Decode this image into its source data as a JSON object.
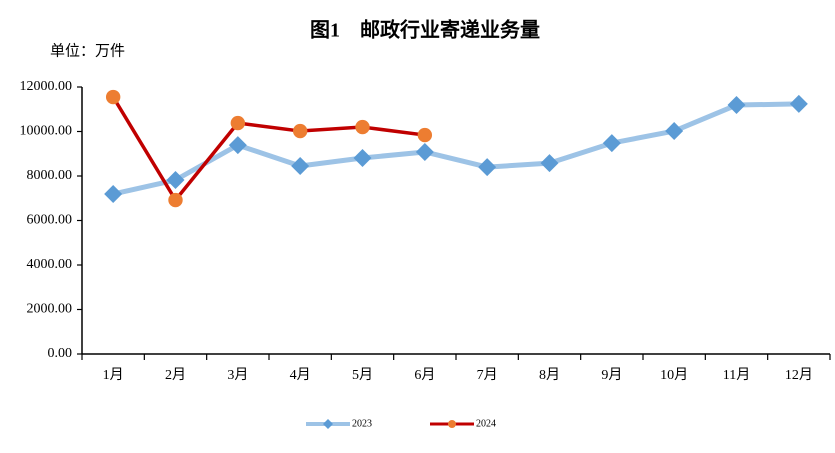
{
  "chart_data": {
    "type": "line",
    "title": "图1　邮政行业寄递业务量",
    "unit": "单位：万件",
    "categories": [
      "1月",
      "2月",
      "3月",
      "4月",
      "5月",
      "6月",
      "7月",
      "8月",
      "9月",
      "10月",
      "11月",
      "12月"
    ],
    "series": [
      {
        "name": "2023",
        "color": "#9dc3e6",
        "marker_color": "#5b9bd5",
        "marker": "diamond",
        "values": [
          7190,
          7820,
          9390,
          8450,
          8810,
          9080,
          8400,
          8580,
          9480,
          10020,
          11190,
          11240
        ]
      },
      {
        "name": "2024",
        "color": "#c00000",
        "marker_color": "#ed7d31",
        "marker": "circle",
        "values": [
          11550,
          6920,
          10380,
          10020,
          10200,
          9840,
          null,
          null,
          null,
          null,
          null,
          null
        ]
      }
    ],
    "ylim": [
      0,
      12000
    ],
    "yticks": [
      {
        "value": 0,
        "label": "0.00"
      },
      {
        "value": 2000,
        "label": "2000.00"
      },
      {
        "value": 4000,
        "label": "4000.00"
      },
      {
        "value": 6000,
        "label": "6000.00"
      },
      {
        "value": 8000,
        "label": "8000.00"
      },
      {
        "value": 10000,
        "label": "10000.00"
      },
      {
        "value": 12000,
        "label": "12000.00"
      }
    ],
    "grid": false,
    "legend": "bottom"
  }
}
